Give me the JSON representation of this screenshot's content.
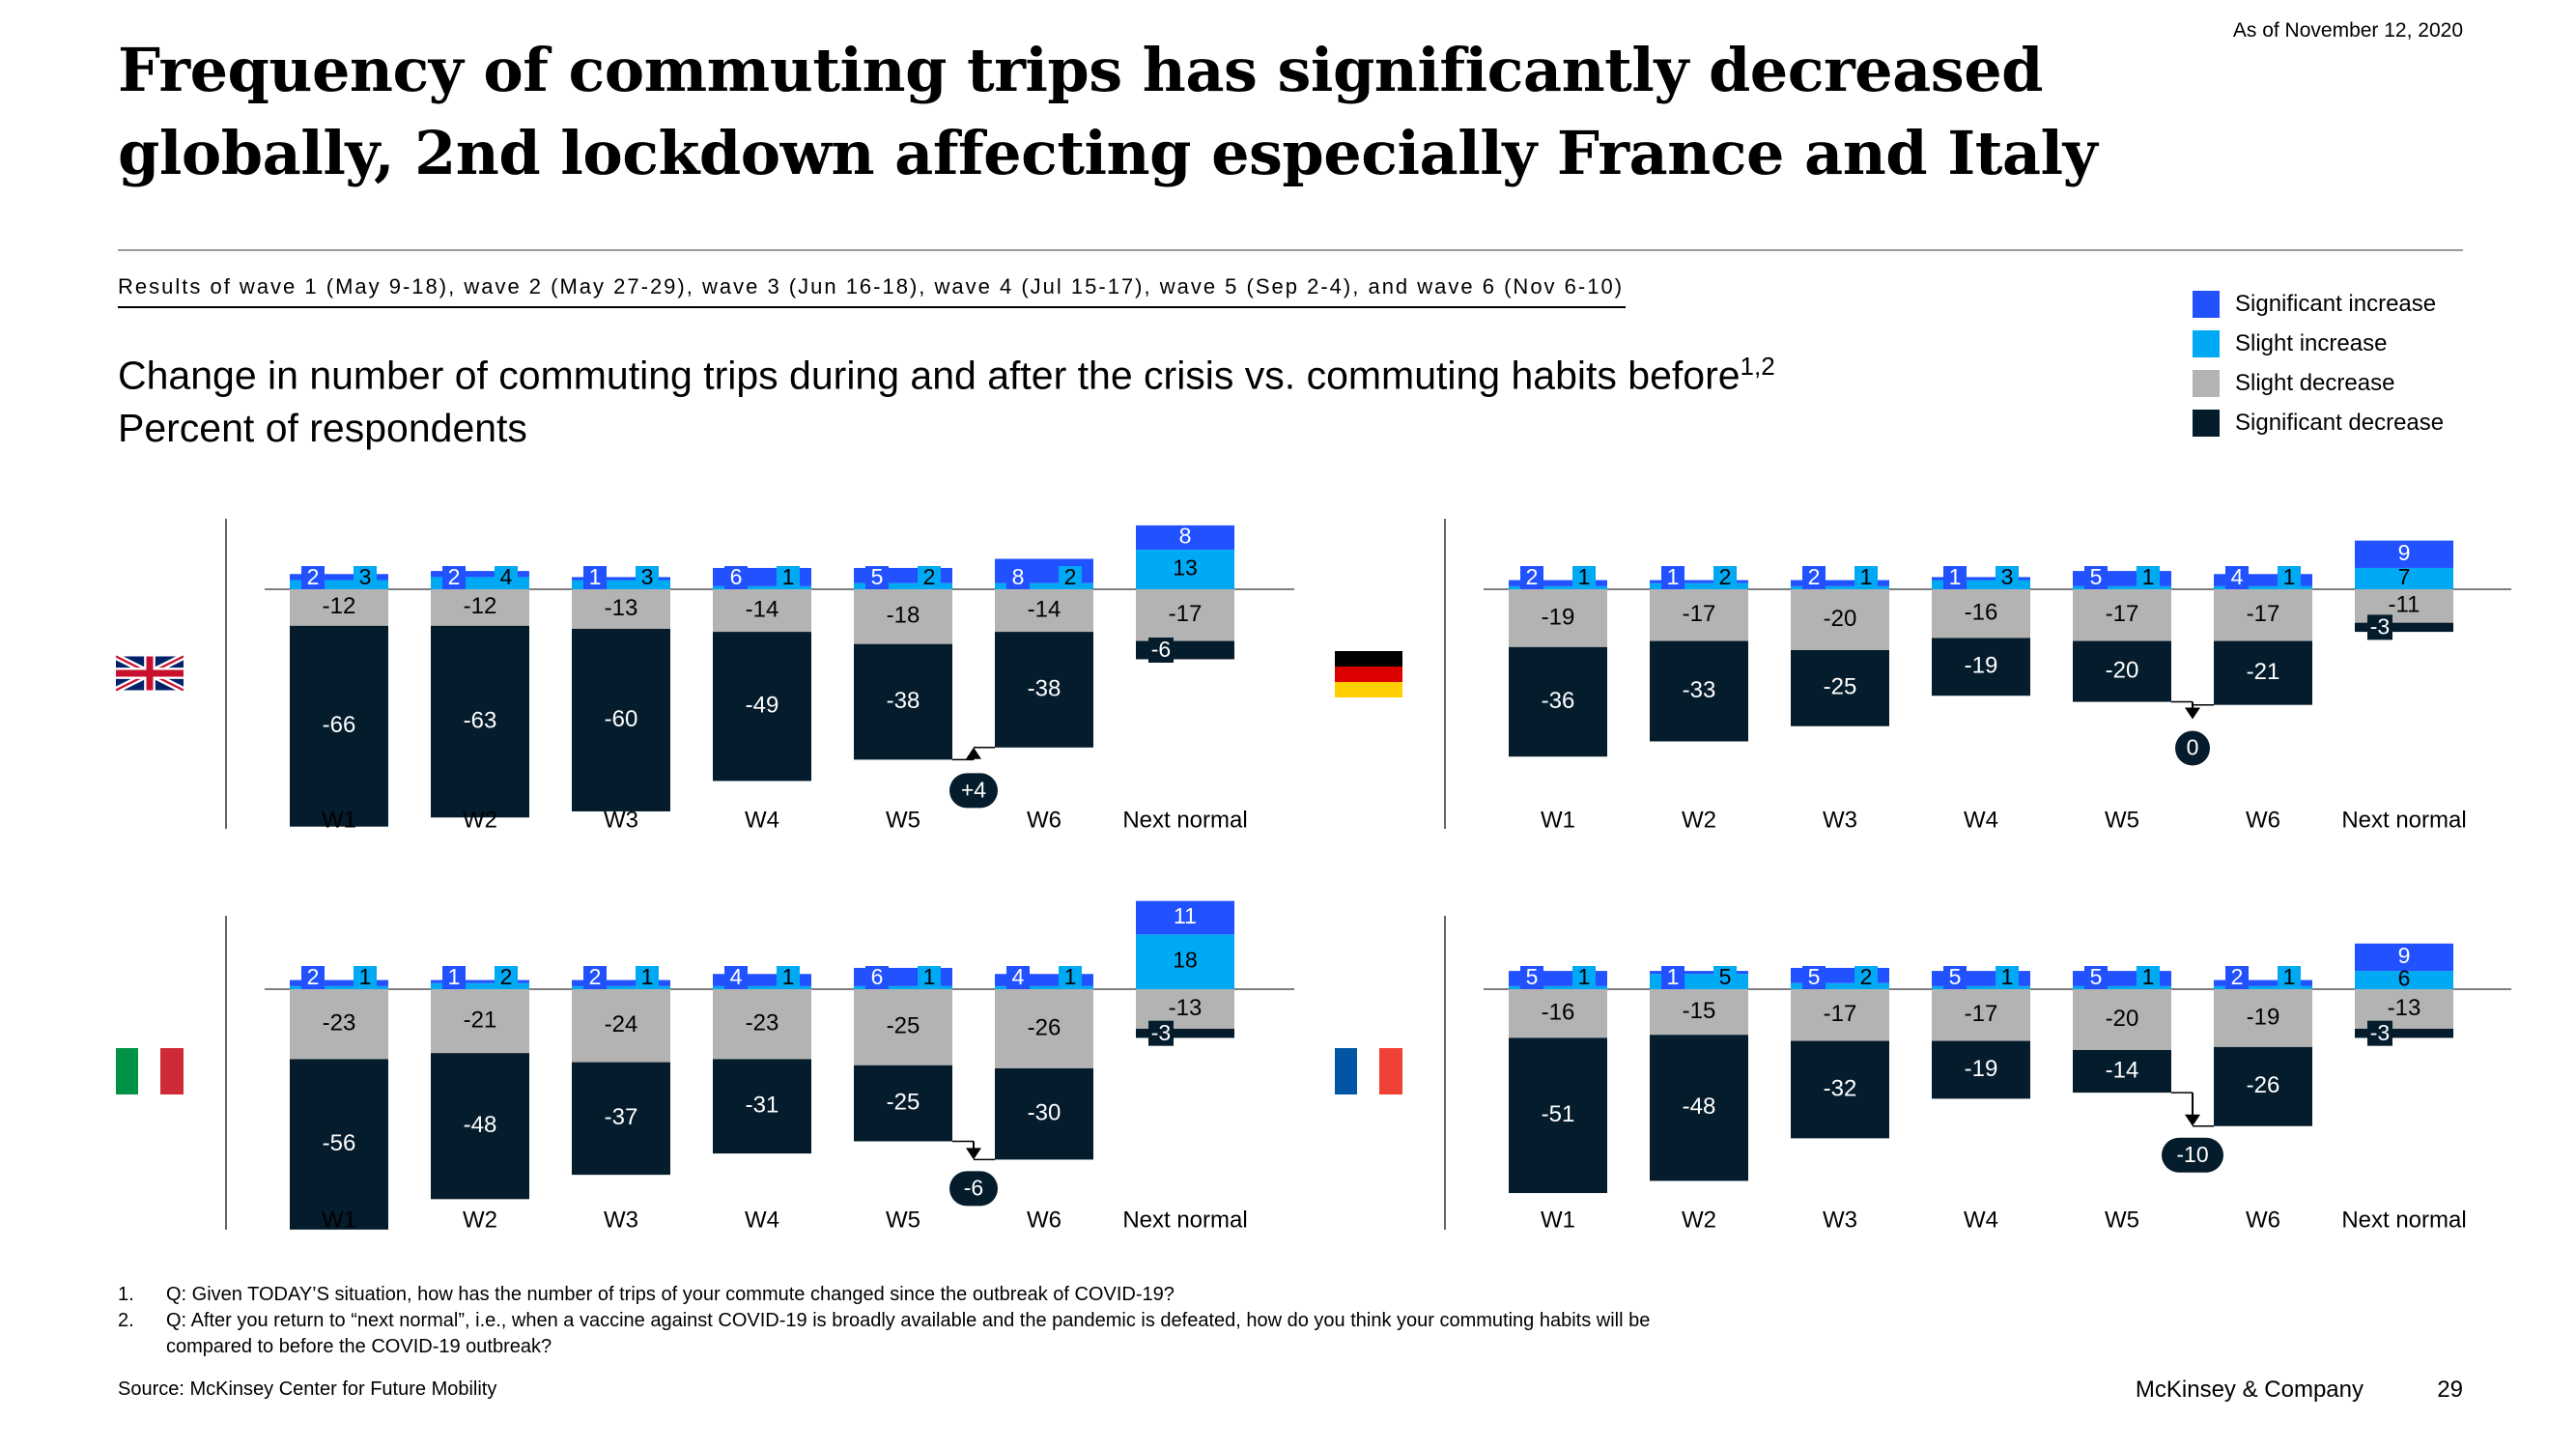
{
  "header": {
    "title_line1": "Frequency of commuting trips has significantly decreased",
    "title_line2": "globally, 2nd lockdown affecting especially France and Italy",
    "as_of": "As of November 12, 2020",
    "waves_text": "Results of wave 1 (May 9-18), wave 2 (May 27-29), wave 3 (Jun 16-18), wave 4 (Jul 15-17), wave 5 (Sep 2-4), and wave 6 (Nov 6-10)",
    "subtitle_line1": "Change in number of commuting trips during and after the crisis vs. commuting habits before",
    "subtitle_sup": "1,2",
    "subtitle_line2": "Percent of respondents"
  },
  "legend": [
    {
      "label": "Significant increase",
      "color": "#2251ff"
    },
    {
      "label": "Slight increase",
      "color": "#00a9f4"
    },
    {
      "label": "Slight decrease",
      "color": "#b3b3b3"
    },
    {
      "label": "Significant decrease",
      "color": "#051c2c"
    }
  ],
  "chart_data": [
    {
      "type": "bar",
      "country": "United Kingdom",
      "flag_icon": "uk-flag-icon",
      "categories": [
        "W1",
        "W2",
        "W3",
        "W4",
        "W5",
        "W6",
        "Next normal"
      ],
      "series": [
        {
          "name": "Significant increase",
          "values": [
            2,
            2,
            1,
            6,
            5,
            8,
            8
          ]
        },
        {
          "name": "Slight increase",
          "values": [
            3,
            4,
            3,
            1,
            2,
            2,
            13
          ]
        },
        {
          "name": "Slight decrease",
          "values": [
            -12,
            -12,
            -13,
            -14,
            -18,
            -14,
            -17
          ]
        },
        {
          "name": "Significant decrease",
          "values": [
            -66,
            -63,
            -60,
            -49,
            -38,
            -38,
            -6
          ]
        }
      ],
      "change_annotation": {
        "between": [
          "W5",
          "W6"
        ],
        "label": "+4"
      }
    },
    {
      "type": "bar",
      "country": "Germany",
      "flag_icon": "germany-flag-icon",
      "categories": [
        "W1",
        "W2",
        "W3",
        "W4",
        "W5",
        "W6",
        "Next normal"
      ],
      "series": [
        {
          "name": "Significant increase",
          "values": [
            2,
            1,
            2,
            1,
            5,
            4,
            9
          ]
        },
        {
          "name": "Slight increase",
          "values": [
            1,
            2,
            1,
            3,
            1,
            1,
            7
          ]
        },
        {
          "name": "Slight decrease",
          "values": [
            -19,
            -17,
            -20,
            -16,
            -17,
            -17,
            -11
          ]
        },
        {
          "name": "Significant decrease",
          "values": [
            -36,
            -33,
            -25,
            -19,
            -20,
            -21,
            -3
          ]
        }
      ],
      "change_annotation": {
        "between": [
          "W5",
          "W6"
        ],
        "label": "0"
      }
    },
    {
      "type": "bar",
      "country": "Italy",
      "flag_icon": "italy-flag-icon",
      "categories": [
        "W1",
        "W2",
        "W3",
        "W4",
        "W5",
        "W6",
        "Next normal"
      ],
      "series": [
        {
          "name": "Significant increase",
          "values": [
            2,
            1,
            2,
            4,
            6,
            4,
            11
          ]
        },
        {
          "name": "Slight increase",
          "values": [
            1,
            2,
            1,
            1,
            1,
            1,
            18
          ]
        },
        {
          "name": "Slight decrease",
          "values": [
            -23,
            -21,
            -24,
            -23,
            -25,
            -26,
            -13
          ]
        },
        {
          "name": "Significant decrease",
          "values": [
            -56,
            -48,
            -37,
            -31,
            -25,
            -30,
            -3
          ]
        }
      ],
      "change_annotation": {
        "between": [
          "W5",
          "W6"
        ],
        "label": "-6"
      }
    },
    {
      "type": "bar",
      "country": "France",
      "flag_icon": "france-flag-icon",
      "categories": [
        "W1",
        "W2",
        "W3",
        "W4",
        "W5",
        "W6",
        "Next normal"
      ],
      "series": [
        {
          "name": "Significant increase",
          "values": [
            5,
            1,
            5,
            5,
            5,
            2,
            9
          ]
        },
        {
          "name": "Slight increase",
          "values": [
            1,
            5,
            2,
            1,
            1,
            1,
            6
          ]
        },
        {
          "name": "Slight decrease",
          "values": [
            -16,
            -15,
            -17,
            -17,
            -20,
            -19,
            -13
          ]
        },
        {
          "name": "Significant decrease",
          "values": [
            -51,
            -48,
            -32,
            -19,
            -14,
            -26,
            -3
          ]
        }
      ],
      "change_annotation": {
        "between": [
          "W5",
          "W6"
        ],
        "label": "-10"
      }
    }
  ],
  "footnotes": [
    {
      "num": "1.",
      "text": "Q: Given TODAY’S situation, how has the number of trips of your commute changed since the outbreak of COVID-19?"
    },
    {
      "num": "2.",
      "text": "Q: After you return to “next normal”, i.e., when a vaccine against COVID-19 is broadly available and the pandemic is defeated, how do you think your commuting habits will be compared to before the COVID-19 outbreak?"
    }
  ],
  "footer": {
    "source": "Source: McKinsey Center for Future Mobility",
    "brand": "McKinsey & Company",
    "page_number": "29"
  }
}
